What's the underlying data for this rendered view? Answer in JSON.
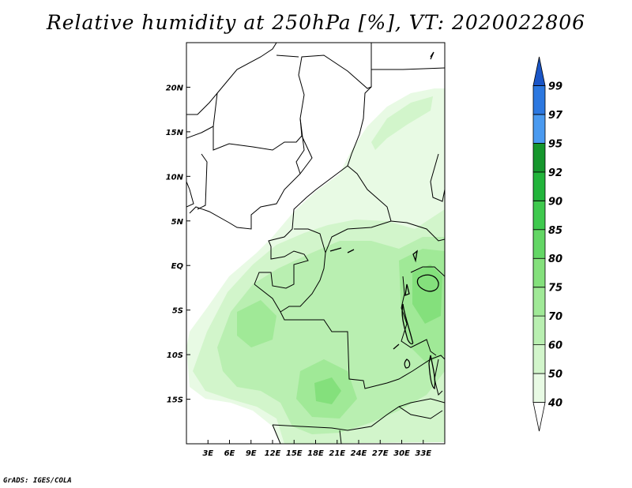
{
  "title": "Relative humidity at 250hPa [%], VT: 2020022806",
  "credit": "GrADS: IGES/COLA",
  "map": {
    "lon_range": [
      0,
      36
    ],
    "lat_range": [
      -20,
      25
    ],
    "lon_ticks": [
      "3E",
      "6E",
      "9E",
      "12E",
      "15E",
      "18E",
      "21E",
      "24E",
      "27E",
      "30E",
      "33E"
    ],
    "lat_ticks": [
      "20N",
      "15N",
      "10N",
      "5N",
      "EQ",
      "5S",
      "10S",
      "15S"
    ],
    "colorbar": {
      "levels": [
        "40",
        "50",
        "60",
        "70",
        "75",
        "80",
        "85",
        "90",
        "92",
        "95",
        "97",
        "99"
      ],
      "colors": [
        "#ffffff",
        "#e8fae4",
        "#d2f5cb",
        "#b9efb1",
        "#a0e997",
        "#84e07c",
        "#63d665",
        "#3fc94e",
        "#22b43b",
        "#15962c",
        "#4a9af0",
        "#2c78e0",
        "#1a55c6"
      ]
    }
  }
}
